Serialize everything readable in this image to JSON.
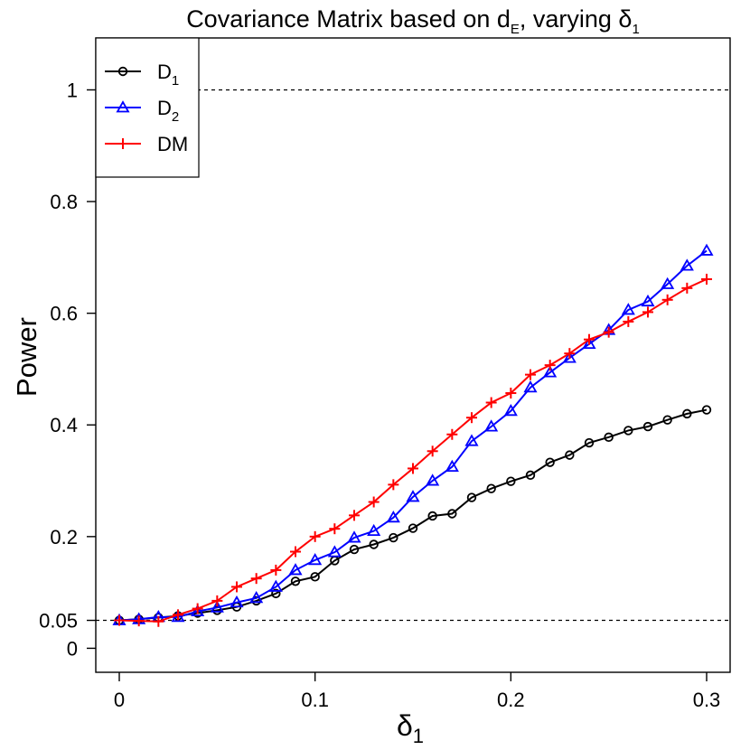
{
  "chart_data": {
    "type": "line",
    "title": {
      "main": "Covariance Matrix based on d",
      "main_sub": "E",
      "tail": ", varying δ",
      "tail_sub": "1"
    },
    "xlabel": {
      "main": "δ",
      "sub": "1"
    },
    "ylabel": "Power",
    "xlim": [
      -0.012,
      0.312
    ],
    "ylim": [
      -0.043,
      1.093
    ],
    "x_ticks": [
      {
        "value": 0,
        "label": "0"
      },
      {
        "value": 0.1,
        "label": "0.1"
      },
      {
        "value": 0.2,
        "label": "0.2"
      },
      {
        "value": 0.3,
        "label": "0.3"
      }
    ],
    "y_ticks": [
      {
        "value": 0,
        "label": "0"
      },
      {
        "value": 0.05,
        "label": "0.05"
      },
      {
        "value": 0.2,
        "label": "0.2"
      },
      {
        "value": 0.4,
        "label": "0.4"
      },
      {
        "value": 0.6,
        "label": "0.6"
      },
      {
        "value": 0.8,
        "label": "0.8"
      },
      {
        "value": 1,
        "label": "1"
      }
    ],
    "reference_lines": [
      {
        "y": 1,
        "style": "dashed"
      },
      {
        "y": 0.05,
        "style": "dashed"
      }
    ],
    "x": [
      0,
      0.01,
      0.02,
      0.03,
      0.04,
      0.05,
      0.06,
      0.07,
      0.08,
      0.09,
      0.1,
      0.11,
      0.12,
      0.13,
      0.14,
      0.15,
      0.16,
      0.17,
      0.18,
      0.19,
      0.2,
      0.21,
      0.22,
      0.23,
      0.24,
      0.25,
      0.26,
      0.27,
      0.28,
      0.29,
      0.3
    ],
    "series": [
      {
        "name": "D",
        "name_sub": "1",
        "color": "#000000",
        "marker": "circle",
        "values": [
          0.05,
          0.052,
          0.055,
          0.058,
          0.063,
          0.068,
          0.074,
          0.085,
          0.098,
          0.12,
          0.128,
          0.157,
          0.177,
          0.186,
          0.198,
          0.215,
          0.237,
          0.241,
          0.27,
          0.286,
          0.299,
          0.31,
          0.333,
          0.346,
          0.368,
          0.378,
          0.39,
          0.397,
          0.409,
          0.42,
          0.427
        ]
      },
      {
        "name": "D",
        "name_sub": "2",
        "color": "#0000ff",
        "marker": "triangle",
        "values": [
          0.05,
          0.052,
          0.056,
          0.056,
          0.066,
          0.073,
          0.082,
          0.09,
          0.11,
          0.14,
          0.158,
          0.172,
          0.198,
          0.21,
          0.234,
          0.271,
          0.3,
          0.325,
          0.371,
          0.397,
          0.425,
          0.467,
          0.494,
          0.52,
          0.545,
          0.57,
          0.606,
          0.621,
          0.652,
          0.685,
          0.712
        ]
      },
      {
        "name": "DM",
        "name_sub": "",
        "color": "#ff0000",
        "marker": "plus",
        "values": [
          0.05,
          0.049,
          0.048,
          0.06,
          0.071,
          0.085,
          0.11,
          0.125,
          0.14,
          0.173,
          0.2,
          0.214,
          0.238,
          0.262,
          0.293,
          0.322,
          0.353,
          0.383,
          0.413,
          0.44,
          0.457,
          0.49,
          0.507,
          0.528,
          0.553,
          0.566,
          0.585,
          0.602,
          0.624,
          0.645,
          0.661
        ]
      }
    ],
    "legend": {
      "position": "top-left"
    }
  }
}
